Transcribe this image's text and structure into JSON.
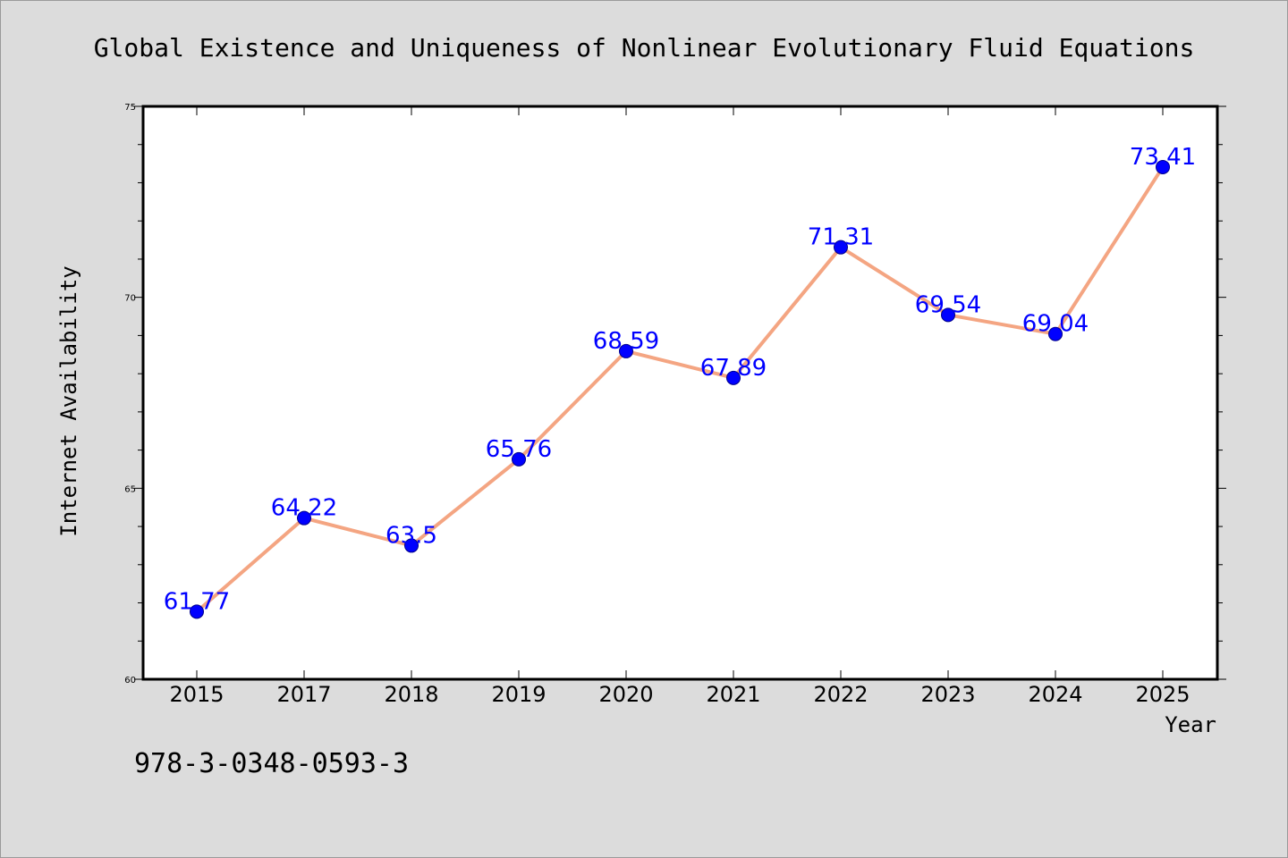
{
  "chart_data": {
    "type": "line",
    "title": "Global Existence and Uniqueness of Nonlinear Evolutionary Fluid Equations",
    "xlabel": "Year",
    "ylabel": "Internet Availability",
    "categories": [
      "2015",
      "2017",
      "2018",
      "2019",
      "2020",
      "2021",
      "2022",
      "2023",
      "2024",
      "2025"
    ],
    "values": [
      61.77,
      64.22,
      63.5,
      65.76,
      68.59,
      67.89,
      71.31,
      69.54,
      69.04,
      73.41
    ],
    "data_labels": [
      "61.77",
      "64.22",
      "63.5",
      "65.76",
      "68.59",
      "67.89",
      "71.31",
      "69.54",
      "69.04",
      "73.41"
    ],
    "ylim": [
      60,
      75
    ],
    "yticks": [
      60,
      65,
      70,
      75
    ],
    "yticks_minor_step": 1,
    "grid": false,
    "legend": "none",
    "colors": {
      "line": "#f4a582",
      "marker": "#0000ff",
      "marker_edge": "#00008b",
      "data_label": "#0000ff",
      "background": "#dcdcdc",
      "plot_background": "#ffffff"
    }
  },
  "footnote": "978-3-0348-0593-3"
}
